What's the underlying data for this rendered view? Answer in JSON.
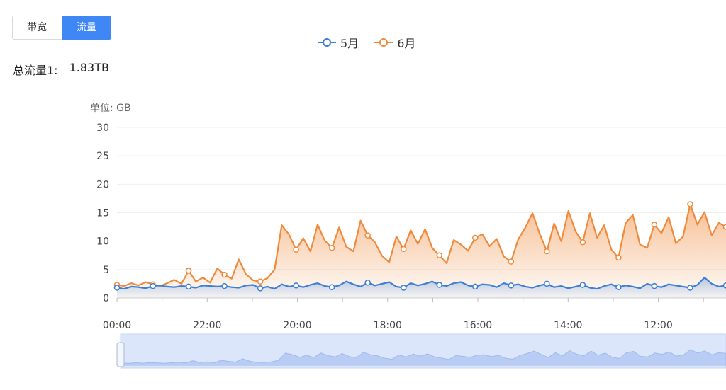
{
  "tabs": [
    {
      "label": "带宽",
      "active": false
    },
    {
      "label": "流量",
      "active": true
    }
  ],
  "total": {
    "label": "总流量1:",
    "value": "1.83TB"
  },
  "legend": [
    {
      "name": "5月",
      "color": "#3c7fd7"
    },
    {
      "name": "6月",
      "color": "#f08a3c"
    }
  ],
  "chart_data": {
    "type": "area",
    "ylabel": "单位: GB",
    "ylim": [
      0,
      30
    ],
    "yticks": [
      0,
      5,
      10,
      15,
      20,
      25,
      30
    ],
    "xticks": [
      "00:00",
      "22:00",
      "20:00",
      "18:00",
      "16:00",
      "14:00",
      "12:00"
    ],
    "xrange_hours": [
      0,
      14
    ],
    "series": [
      {
        "name": "5月",
        "color": "#3c7fd7",
        "values": [
          1.8,
          1.6,
          2.0,
          1.9,
          1.7,
          2.1,
          2.2,
          2.0,
          1.9,
          2.1,
          2.0,
          1.8,
          2.2,
          2.1,
          2.0,
          2.1,
          1.9,
          1.8,
          2.2,
          2.3,
          1.7,
          2.0,
          1.6,
          2.4,
          2.0,
          2.2,
          1.9,
          2.3,
          2.6,
          2.1,
          1.9,
          2.2,
          2.9,
          2.4,
          2.0,
          2.7,
          2.2,
          2.5,
          2.8,
          2.0,
          1.8,
          2.6,
          2.2,
          2.5,
          2.9,
          2.3,
          2.1,
          2.6,
          2.8,
          2.2,
          2.0,
          2.4,
          2.3,
          1.9,
          2.6,
          2.2,
          2.4,
          2.0,
          1.8,
          2.2,
          2.5,
          1.9,
          2.1,
          1.7,
          2.0,
          2.3,
          1.8,
          1.6,
          2.1,
          2.4,
          1.9,
          2.2,
          2.0,
          1.7,
          2.5,
          2.1,
          1.9,
          2.4,
          2.2,
          2.0,
          1.8,
          2.3,
          3.6,
          2.5,
          2.0,
          2.2
        ]
      },
      {
        "name": "6月",
        "color": "#f08a3c",
        "values": [
          2.3,
          2.1,
          2.6,
          2.2,
          2.8,
          2.4,
          2.1,
          2.6,
          3.2,
          2.5,
          4.8,
          2.9,
          3.6,
          2.7,
          5.2,
          4.1,
          3.4,
          6.8,
          4.2,
          3.1,
          2.9,
          3.5,
          5.0,
          12.8,
          11.2,
          8.5,
          10.5,
          8.2,
          12.9,
          10.1,
          8.8,
          12.4,
          9.0,
          8.2,
          13.6,
          11.0,
          9.8,
          7.4,
          6.3,
          10.8,
          8.6,
          11.9,
          9.5,
          12.1,
          8.8,
          7.5,
          6.1,
          10.2,
          9.4,
          8.3,
          10.6,
          11.2,
          9.1,
          10.4,
          7.3,
          6.4,
          10.3,
          12.4,
          14.9,
          11.3,
          8.2,
          13.1,
          10.0,
          15.3,
          11.7,
          9.8,
          14.9,
          10.6,
          12.8,
          8.5,
          7.1,
          13.2,
          14.6,
          9.4,
          8.8,
          12.9,
          11.4,
          14.2,
          9.6,
          10.8,
          16.5,
          12.9,
          15.1,
          11.0,
          13.2,
          12.5
        ]
      }
    ]
  }
}
